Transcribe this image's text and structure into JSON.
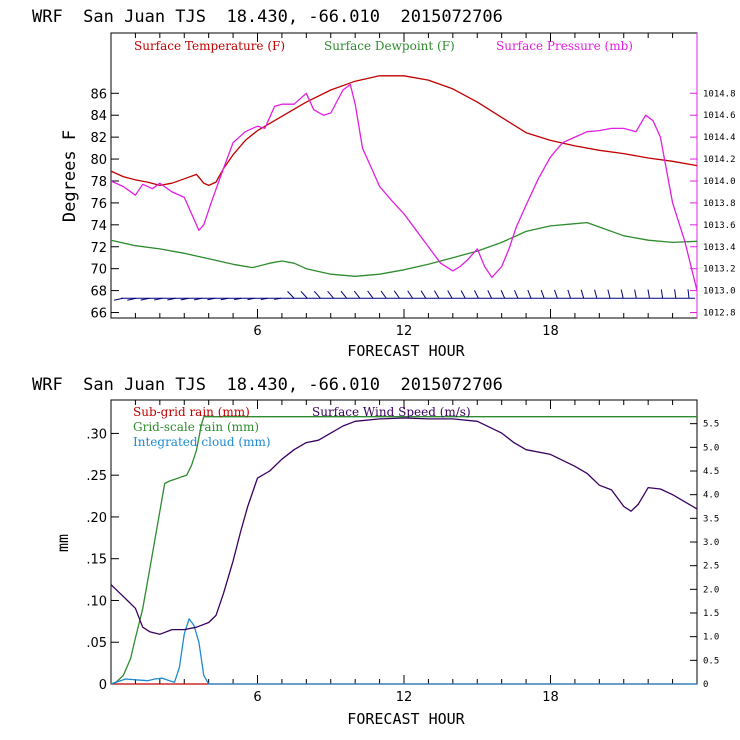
{
  "chart_data": [
    {
      "type": "line",
      "title": "WRF  San Juan TJS  18.430, -66.010  2015072706",
      "xlabel": "FORECAST HOUR",
      "ylabel": "Degrees F",
      "xlim": [
        0,
        24
      ],
      "ylim": [
        65.5,
        91.5
      ],
      "y2lim": [
        1012.75,
        1015.35
      ],
      "xticks": [
        "6",
        "12",
        "18"
      ],
      "xtick_values": [
        6,
        12,
        18
      ],
      "yticks": [
        "66",
        "68",
        "70",
        "72",
        "74",
        "76",
        "78",
        "80",
        "82",
        "84",
        "86"
      ],
      "y2ticks": [
        "1012.8",
        "1013.0",
        "1013.2",
        "1013.4",
        "1013.6",
        "1013.8",
        "1014.0",
        "1014.2",
        "1014.4",
        "1014.6",
        "1014.8"
      ],
      "legend_placement": "top-left, inside plot",
      "series": [
        {
          "name": "Surface Temperature (F)",
          "axis": "left",
          "color": "#c00000",
          "x": [
            0,
            0.5,
            1,
            1.5,
            2,
            2.5,
            3,
            3.5,
            3.8,
            4,
            4.3,
            4.6,
            5,
            5.5,
            6,
            7,
            8,
            9,
            10,
            11,
            12,
            13,
            14,
            15,
            16,
            17,
            18,
            19,
            20,
            21,
            22,
            23,
            24
          ],
          "y": [
            78.9,
            78.4,
            78.1,
            77.9,
            77.6,
            77.8,
            78.2,
            78.6,
            77.8,
            77.6,
            77.9,
            79.1,
            80.4,
            81.7,
            82.6,
            83.9,
            85.2,
            86.3,
            87.1,
            87.6,
            87.6,
            87.2,
            86.4,
            85.2,
            83.8,
            82.4,
            81.7,
            81.2,
            80.8,
            80.5,
            80.1,
            79.8,
            79.4
          ]
        },
        {
          "name": "Surface Dewpoint (F)",
          "axis": "left",
          "color": "#2e8b2e",
          "x": [
            0,
            1,
            2,
            3,
            4,
            5,
            5.8,
            6.5,
            7,
            7.5,
            8,
            9,
            10,
            11,
            12,
            13,
            14,
            15,
            16,
            17,
            18,
            19,
            19.5,
            20,
            21,
            22,
            23,
            24
          ],
          "y": [
            72.6,
            72.1,
            71.8,
            71.4,
            70.9,
            70.4,
            70.1,
            70.5,
            70.7,
            70.5,
            70.0,
            69.5,
            69.3,
            69.5,
            69.9,
            70.4,
            71.0,
            71.6,
            72.4,
            73.4,
            73.9,
            74.1,
            74.2,
            73.8,
            73.0,
            72.6,
            72.4,
            72.5
          ]
        },
        {
          "name": "Surface Pressure (mb)",
          "axis": "right",
          "color": "#e020e0",
          "x": [
            0,
            0.5,
            1,
            1.3,
            1.7,
            2,
            2.5,
            3,
            3.3,
            3.6,
            3.8,
            4.1,
            4.5,
            5,
            5.5,
            6,
            6.3,
            6.7,
            7,
            7.5,
            8,
            8.3,
            8.7,
            9,
            9.5,
            9.8,
            10,
            10.3,
            10.7,
            11,
            11.5,
            12,
            12.5,
            13,
            13.5,
            14,
            14.3,
            14.6,
            15,
            15.3,
            15.6,
            16,
            16.3,
            16.6,
            17,
            17.5,
            18,
            18.5,
            19,
            19.5,
            20,
            20.5,
            21,
            21.5,
            21.9,
            22.2,
            22.5,
            23,
            23.5,
            24
          ],
          "y": [
            1014.0,
            1013.95,
            1013.87,
            1013.97,
            1013.93,
            1013.98,
            1013.9,
            1013.85,
            1013.7,
            1013.55,
            1013.6,
            1013.8,
            1014.05,
            1014.35,
            1014.45,
            1014.5,
            1014.48,
            1014.68,
            1014.7,
            1014.7,
            1014.8,
            1014.65,
            1014.6,
            1014.62,
            1014.83,
            1014.88,
            1014.7,
            1014.3,
            1014.1,
            1013.95,
            1013.82,
            1013.7,
            1013.55,
            1013.4,
            1013.25,
            1013.18,
            1013.22,
            1013.28,
            1013.38,
            1013.22,
            1013.12,
            1013.22,
            1013.38,
            1013.58,
            1013.78,
            1014.02,
            1014.22,
            1014.35,
            1014.4,
            1014.45,
            1014.46,
            1014.48,
            1014.48,
            1014.45,
            1014.6,
            1014.55,
            1014.4,
            1013.8,
            1013.45,
            1013.0
          ]
        }
      ],
      "wind_barbs": {
        "color": "#000080",
        "count": 44,
        "level_f": 67.3
      }
    },
    {
      "type": "line",
      "title": "WRF  San Juan TJS  18.430, -66.010  2015072706",
      "xlabel": "FORECAST HOUR",
      "ylabel": "mm",
      "xlim": [
        0,
        24
      ],
      "ylim": [
        0,
        0.34
      ],
      "y2lim": [
        0,
        6
      ],
      "xticks": [
        "6",
        "12",
        "18"
      ],
      "xtick_values": [
        6,
        12,
        18
      ],
      "yticks": [
        "0",
        ".05",
        ".10",
        ".15",
        ".20",
        ".25",
        ".30"
      ],
      "y2ticks": [
        "0",
        "0.5",
        "1.0",
        "1.5",
        "2.0",
        "2.5",
        "3.0",
        "3.5",
        "4.0",
        "4.5",
        "5.0",
        "5.5"
      ],
      "legend_placement": "top-left, inside plot",
      "series": [
        {
          "name": "Sub-grid rain (mm)",
          "axis": "left",
          "color": "#c00000",
          "x": [
            0,
            24
          ],
          "y": [
            0,
            0
          ]
        },
        {
          "name": "Grid-scale rain (mm)",
          "axis": "left",
          "color": "#2e8b2e",
          "x": [
            0,
            0.2,
            0.5,
            0.8,
            1.0,
            1.3,
            1.6,
            1.9,
            2.2,
            2.4,
            2.6,
            2.9,
            3.1,
            3.3,
            3.5,
            3.7,
            3.8,
            4,
            24
          ],
          "y": [
            0,
            0.002,
            0.01,
            0.03,
            0.055,
            0.09,
            0.14,
            0.19,
            0.24,
            0.243,
            0.245,
            0.248,
            0.25,
            0.262,
            0.28,
            0.31,
            0.32,
            0.32,
            0.32
          ]
        },
        {
          "name": "Integrated cloud (mm)",
          "axis": "left",
          "color": "#1e8ad2",
          "x": [
            0,
            0.3,
            0.6,
            1,
            1.5,
            1.8,
            2.1,
            2.4,
            2.6,
            2.8,
            3,
            3.2,
            3.4,
            3.6,
            3.8,
            4,
            24
          ],
          "y": [
            0,
            0.003,
            0.006,
            0.005,
            0.004,
            0.006,
            0.007,
            0.004,
            0.002,
            0.02,
            0.06,
            0.078,
            0.07,
            0.05,
            0.01,
            0,
            0
          ]
        },
        {
          "name": "Surface Wind Speed (m/s)",
          "axis": "right",
          "color": "#3a0060",
          "x": [
            0,
            0.3,
            0.6,
            1,
            1.3,
            1.6,
            2,
            2.5,
            3,
            3.5,
            4,
            4.3,
            4.6,
            5,
            5.3,
            5.6,
            6,
            6.5,
            7,
            7.5,
            8,
            8.5,
            9,
            9.5,
            10,
            11,
            12,
            13,
            14,
            15,
            16,
            16.5,
            17,
            18,
            19,
            19.5,
            20,
            20.5,
            21,
            21.3,
            21.6,
            22,
            22.5,
            23,
            24
          ],
          "y": [
            2.1,
            1.95,
            1.8,
            1.6,
            1.2,
            1.1,
            1.05,
            1.15,
            1.15,
            1.2,
            1.3,
            1.45,
            1.9,
            2.6,
            3.2,
            3.75,
            4.35,
            4.5,
            4.75,
            4.95,
            5.1,
            5.15,
            5.3,
            5.45,
            5.55,
            5.6,
            5.62,
            5.6,
            5.6,
            5.55,
            5.3,
            5.1,
            4.95,
            4.85,
            4.6,
            4.45,
            4.2,
            4.1,
            3.75,
            3.65,
            3.8,
            4.15,
            4.12,
            4.0,
            3.7
          ]
        }
      ]
    }
  ]
}
